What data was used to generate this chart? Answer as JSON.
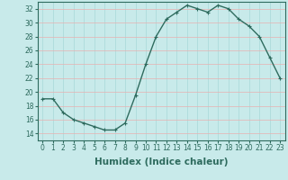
{
  "x": [
    0,
    1,
    2,
    3,
    4,
    5,
    6,
    7,
    8,
    9,
    10,
    11,
    12,
    13,
    14,
    15,
    16,
    17,
    18,
    19,
    20,
    21,
    22,
    23
  ],
  "y": [
    19,
    19,
    17,
    16,
    15.5,
    15,
    14.5,
    14.5,
    15.5,
    19.5,
    24,
    28,
    30.5,
    31.5,
    32.5,
    32,
    31.5,
    32.5,
    32,
    30.5,
    29.5,
    28,
    25,
    22
  ],
  "line_color": "#2e6b5e",
  "marker": "+",
  "marker_color": "#2e6b5e",
  "bg_color": "#c8eaea",
  "grid_color_h": "#e8b0b0",
  "grid_color_v": "#a8d8d8",
  "xlabel": "Humidex (Indice chaleur)",
  "ylabel": "",
  "xlim": [
    -0.5,
    23.5
  ],
  "ylim": [
    13,
    33
  ],
  "yticks": [
    14,
    16,
    18,
    20,
    22,
    24,
    26,
    28,
    30,
    32
  ],
  "xticks": [
    0,
    1,
    2,
    3,
    4,
    5,
    6,
    7,
    8,
    9,
    10,
    11,
    12,
    13,
    14,
    15,
    16,
    17,
    18,
    19,
    20,
    21,
    22,
    23
  ],
  "tick_fontsize": 5.5,
  "xlabel_fontsize": 7.5,
  "line_width": 1.0,
  "marker_size": 3.5
}
